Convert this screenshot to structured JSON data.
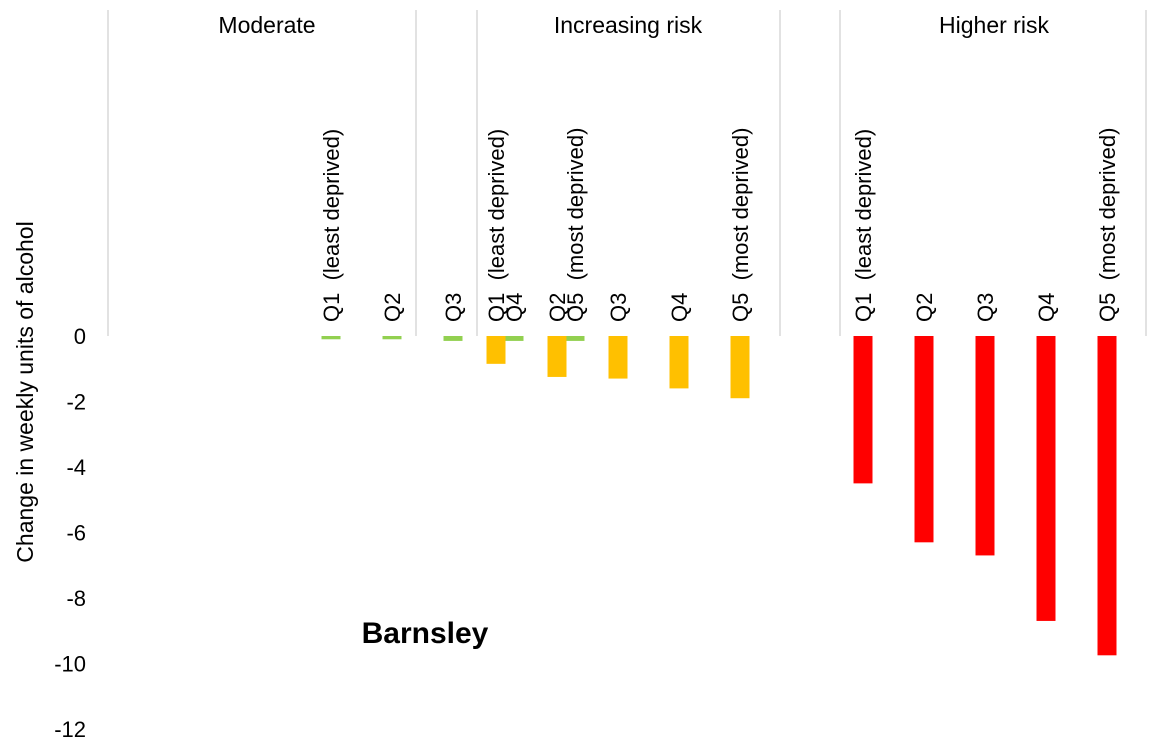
{
  "chart_data": {
    "type": "bar",
    "ylabel": "Change in weekly units of alcohol",
    "annotation": "Barnsley",
    "ylim": [
      -12,
      0
    ],
    "yticks": [
      0,
      -2,
      -4,
      -6,
      -8,
      -10,
      -12
    ],
    "grid": false,
    "groups": [
      {
        "name": "Moderate",
        "color": "#92D050",
        "categories": [
          "Q1  (least deprived)",
          "Q2",
          "Q3",
          "Q4",
          "Q5  (most deprived)"
        ],
        "values": [
          -0.1,
          -0.1,
          -0.15,
          -0.15,
          -0.15
        ]
      },
      {
        "name": "Increasing risk",
        "color": "#FFC000",
        "categories": [
          "Q1  (least deprived)",
          "Q2",
          "Q3",
          "Q4",
          "Q5  (most deprived)"
        ],
        "values": [
          -0.85,
          -1.25,
          -1.3,
          -1.6,
          -1.9
        ]
      },
      {
        "name": "Higher risk",
        "color": "#FF0000",
        "categories": [
          "Q1  (least deprived)",
          "Q2",
          "Q3",
          "Q4",
          "Q5  (most deprived)"
        ],
        "values": [
          -4.5,
          -6.3,
          -6.7,
          -8.7,
          -9.75
        ]
      }
    ]
  }
}
